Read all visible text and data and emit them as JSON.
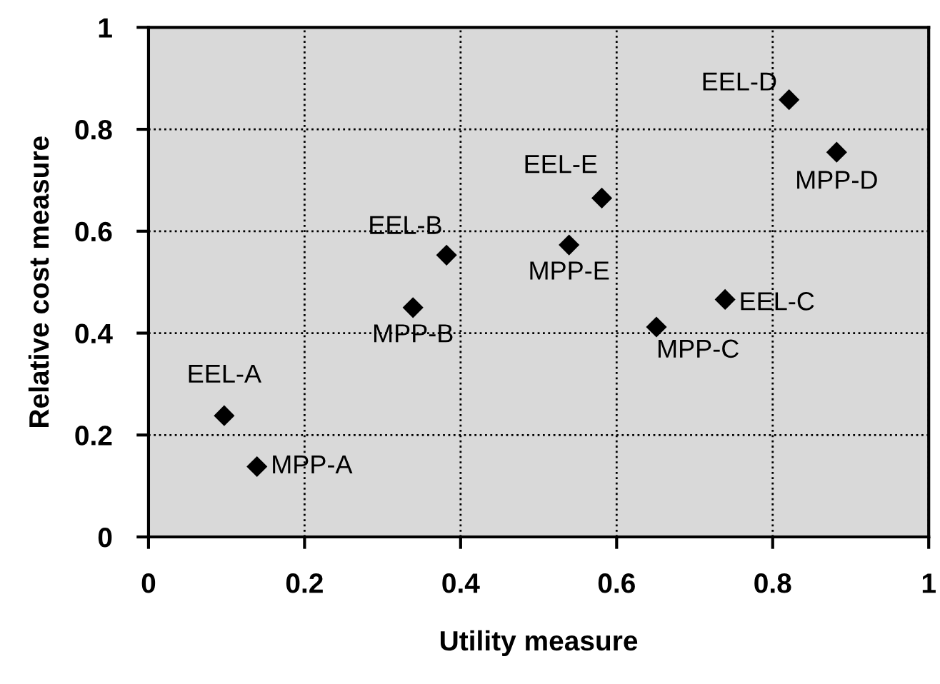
{
  "chart_data": {
    "type": "scatter",
    "xlabel": "Utility measure",
    "ylabel": "Relative cost measure",
    "series": [
      {
        "color": "#000000",
        "x": [
          0.097,
          0.139,
          0.382,
          0.339,
          0.581,
          0.539,
          0.821,
          0.882,
          0.739,
          0.651
        ],
        "values": [
          0.238,
          0.138,
          0.553,
          0.45,
          0.665,
          0.573,
          0.858,
          0.755,
          0.466,
          0.412
        ]
      }
    ],
    "annotations": [
      {
        "text": "EEL-A",
        "x": 0.097,
        "y": 0.238
      },
      {
        "text": "MPP-A",
        "x": 0.139,
        "y": 0.138
      },
      {
        "text": "EEL-B",
        "x": 0.382,
        "y": 0.553
      },
      {
        "text": "MPP-B",
        "x": 0.339,
        "y": 0.45
      },
      {
        "text": "EEL-E",
        "x": 0.581,
        "y": 0.665
      },
      {
        "text": "MPP-E",
        "x": 0.539,
        "y": 0.573
      },
      {
        "text": "EEL-D",
        "x": 0.821,
        "y": 0.858
      },
      {
        "text": "MPP-D",
        "x": 0.882,
        "y": 0.755
      },
      {
        "text": "EEL-C",
        "x": 0.739,
        "y": 0.466
      },
      {
        "text": "MPP-C",
        "x": 0.651,
        "y": 0.412
      }
    ],
    "xlim": [
      0,
      1
    ],
    "ylim": [
      0,
      1
    ],
    "xticks": [
      0,
      0.2,
      0.4,
      0.6,
      0.8,
      1
    ],
    "yticks": [
      0,
      0.2,
      0.4,
      0.6,
      0.8,
      1
    ],
    "grid": true,
    "marker": "diamond"
  }
}
